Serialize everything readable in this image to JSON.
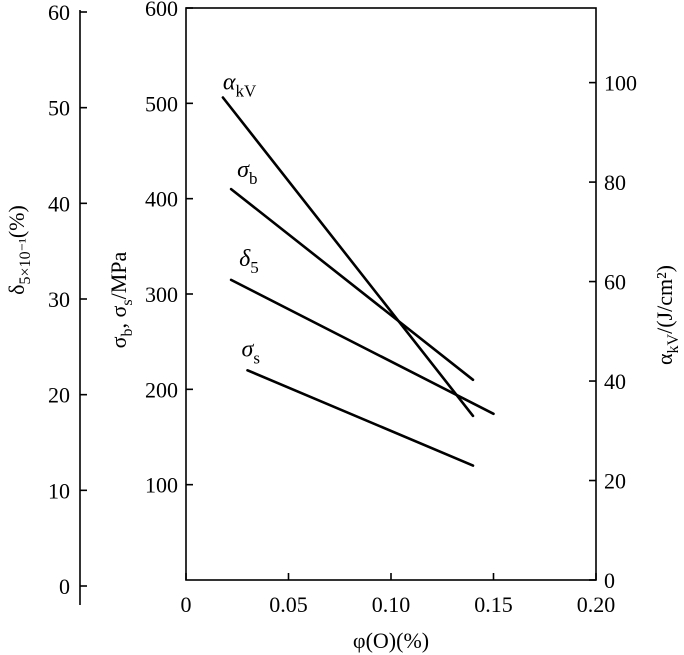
{
  "chart_data": {
    "type": "line",
    "xlabel": "φ(O)(%)",
    "x_ticks": [
      "0",
      "0.05",
      "0.10",
      "0.15",
      "0.20"
    ],
    "xlim": [
      0,
      0.2
    ],
    "axes": {
      "left_outer": {
        "label_main": "δ",
        "label_sub": "5×10⁻¹",
        "label_suffix": "(%)",
        "ylim": [
          0,
          60
        ],
        "ticks": [
          "0",
          "10",
          "20",
          "30",
          "40",
          "50",
          "60"
        ]
      },
      "left_inner": {
        "label_main": "σ",
        "label_sub1": "b",
        "label_mid": ", σ",
        "label_sub2": "s",
        "label_suffix": "/MPa",
        "ylim": [
          0,
          600
        ],
        "ticks": [
          "100",
          "200",
          "300",
          "400",
          "500",
          "600"
        ]
      },
      "right": {
        "label_main": "α",
        "label_sub": "kV",
        "label_suffix": "/(J/cm²)",
        "ylim": [
          0,
          115
        ],
        "ticks": [
          "0",
          "20",
          "40",
          "60",
          "80",
          "100"
        ]
      }
    },
    "series": [
      {
        "name": "αkV",
        "label_main": "α",
        "label_sub": "kV",
        "axis": "right",
        "x": [
          0.018,
          0.14
        ],
        "y": [
          97,
          33
        ]
      },
      {
        "name": "σb",
        "label_main": "σ",
        "label_sub": "b",
        "axis": "left_inner",
        "x": [
          0.022,
          0.14
        ],
        "y": [
          410,
          210
        ]
      },
      {
        "name": "δ5",
        "label_main": "δ",
        "label_sub": "5",
        "axis": "left_outer",
        "x": [
          0.022,
          0.15
        ],
        "y": [
          32,
          18
        ]
      },
      {
        "name": "σs",
        "label_main": "σ",
        "label_sub": "s",
        "axis": "left_inner",
        "x": [
          0.03,
          0.14
        ],
        "y": [
          220,
          120
        ]
      }
    ],
    "grid": false
  }
}
